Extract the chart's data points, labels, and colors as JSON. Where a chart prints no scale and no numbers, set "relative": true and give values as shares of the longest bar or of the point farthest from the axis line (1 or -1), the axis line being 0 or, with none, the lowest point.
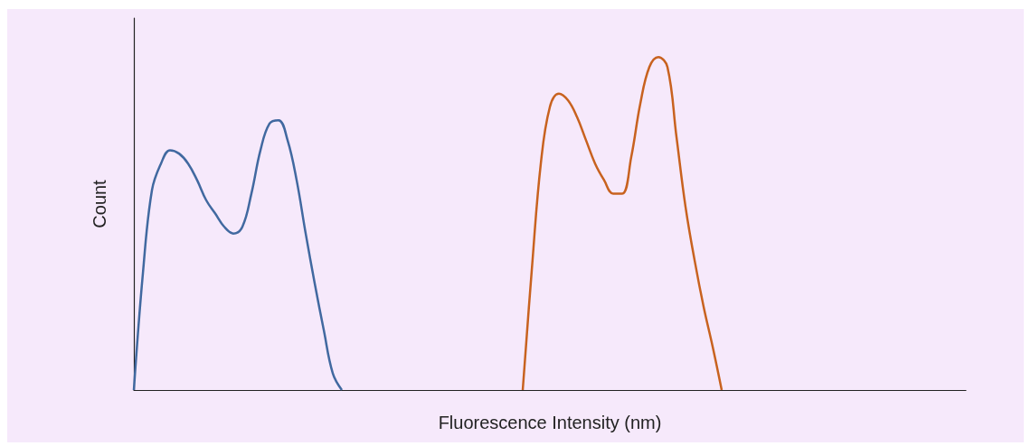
{
  "chart_data": {
    "type": "line",
    "xlabel": "Fluorescence Intensity (nm)",
    "ylabel": "Count",
    "relative": true,
    "categories": [
      null,
      null,
      null,
      null,
      null,
      null,
      null,
      null,
      null,
      null,
      null,
      null,
      null,
      null,
      null,
      null,
      null,
      null,
      null,
      null,
      null,
      null,
      null,
      null,
      null,
      null,
      null,
      null,
      null,
      null,
      null,
      null,
      null,
      null,
      null,
      null,
      null,
      null,
      null,
      null,
      null,
      null,
      null,
      null,
      null,
      null,
      null,
      null,
      null,
      null,
      null,
      null,
      null,
      null,
      null,
      null,
      null,
      null,
      null,
      null,
      null,
      null,
      null,
      null,
      null,
      null,
      null,
      null,
      null,
      null,
      null,
      null,
      null,
      null,
      null,
      null,
      null,
      null,
      null,
      null,
      null,
      null,
      null,
      null,
      null,
      null,
      null,
      null,
      null,
      null,
      null,
      null,
      null
    ],
    "series": [
      {
        "color": "#4169a0",
        "values": [
          0,
          0.35,
          0.6,
          0.68,
          0.72,
          0.71,
          0.68,
          0.63,
          0.57,
          0.53,
          0.49,
          0.47,
          0.49,
          0.59,
          0.72,
          0.8,
          0.81,
          0.75,
          0.63,
          0.47,
          0.32,
          0.18,
          0.05,
          0,
          null,
          null,
          null,
          null,
          null,
          null,
          null,
          null,
          null,
          null,
          null,
          null,
          null,
          null,
          null,
          null,
          null,
          null,
          null,
          null,
          null,
          null,
          null,
          null,
          null,
          null,
          null,
          null,
          null,
          null,
          null,
          null,
          null,
          null,
          null,
          null,
          null,
          null,
          null,
          null,
          null,
          null,
          null,
          null,
          null,
          null,
          null,
          null,
          null,
          null,
          null,
          null,
          null,
          null,
          null,
          null,
          null,
          null,
          null,
          null,
          null,
          null,
          null,
          null,
          null,
          null,
          null,
          null,
          null
        ]
      },
      {
        "color": "#c8621f",
        "values": [
          null,
          null,
          null,
          null,
          null,
          null,
          null,
          null,
          null,
          null,
          null,
          null,
          null,
          null,
          null,
          null,
          null,
          null,
          null,
          null,
          null,
          null,
          null,
          null,
          null,
          null,
          null,
          null,
          null,
          null,
          null,
          null,
          null,
          null,
          null,
          null,
          null,
          null,
          null,
          null,
          null,
          null,
          null,
          0,
          0.36,
          0.68,
          0.85,
          0.89,
          0.87,
          0.82,
          0.75,
          0.68,
          0.63,
          0.59,
          0.59,
          0.7,
          0.86,
          0.97,
          1,
          0.97,
          0.76,
          0.55,
          0.39,
          0.25,
          0.13,
          0,
          null,
          null,
          null,
          null,
          null,
          null,
          null,
          null,
          null,
          null,
          null,
          null,
          null,
          null,
          null,
          null,
          null,
          null,
          null,
          null,
          null,
          null,
          null,
          null,
          null,
          null,
          null
        ]
      }
    ]
  }
}
